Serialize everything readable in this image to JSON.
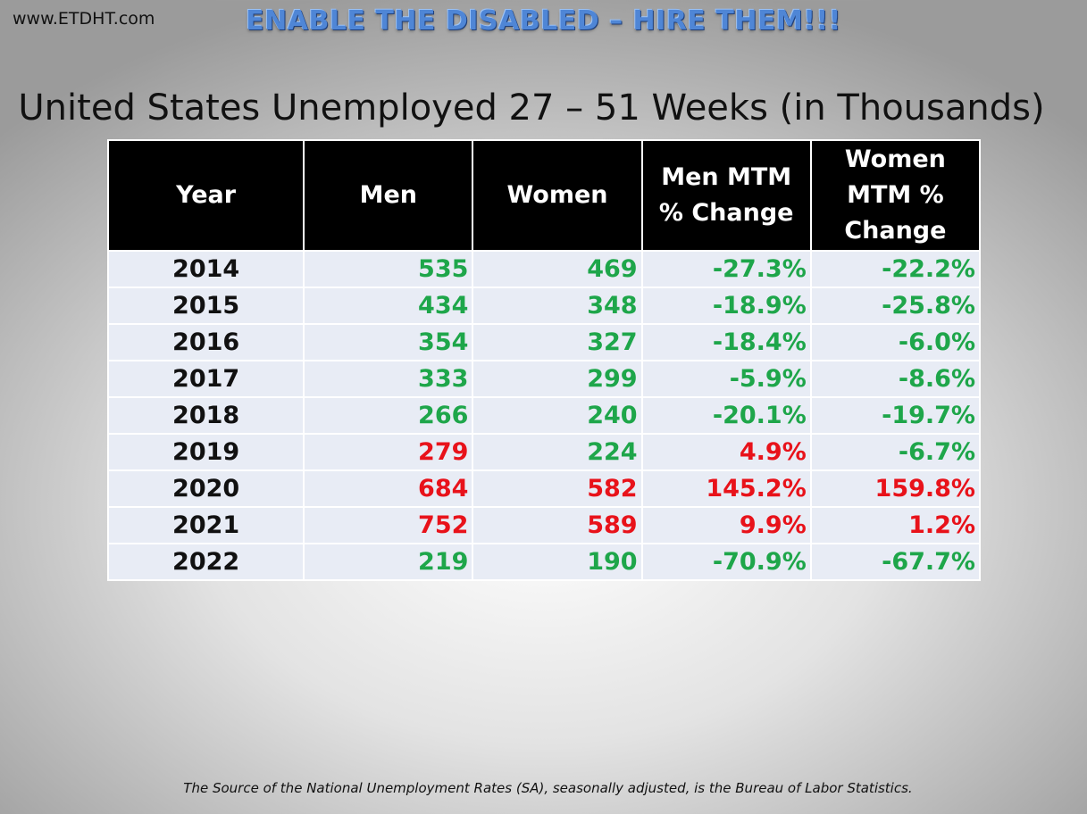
{
  "site_url": "www.ETDHT.com",
  "banner": "ENABLE THE DISABLED – HIRE THEM!!!",
  "title": "United States Unemployed 27 – 51 Weeks (in Thousands)",
  "source": "The Source of the National Unemployment Rates (SA), seasonally adjusted, is the Bureau of Labor Statistics.",
  "colors": {
    "increase": "#e8121a",
    "decrease": "#1ea64a",
    "header_bg": "#000000",
    "row_bg": "#e8ecf5",
    "banner": "#4f86d6"
  },
  "chart_data": {
    "type": "table",
    "title": "United States Unemployed 27 – 51 Weeks (in Thousands)",
    "columns": [
      "Year",
      "Men",
      "Women",
      "Men MTM % Change",
      "Women MTM % Change"
    ],
    "rows": [
      [
        "2014",
        "535",
        "469",
        "-27.3%",
        "-22.2%"
      ],
      [
        "2015",
        "434",
        "348",
        "-18.9%",
        "-25.8%"
      ],
      [
        "2016",
        "354",
        "327",
        "-18.4%",
        "-6.0%"
      ],
      [
        "2017",
        "333",
        "299",
        "-5.9%",
        "-8.6%"
      ],
      [
        "2018",
        "266",
        "240",
        "-20.1%",
        "-19.7%"
      ],
      [
        "2019",
        "279",
        "224",
        "4.9%",
        "-6.7%"
      ],
      [
        "2020",
        "684",
        "582",
        "145.2%",
        "159.8%"
      ],
      [
        "2021",
        "752",
        "589",
        "9.9%",
        "1.2%"
      ],
      [
        "2022",
        "219",
        "190",
        "-70.9%",
        "-67.7%"
      ]
    ],
    "cell_status": [
      [
        "year",
        "decrease",
        "decrease",
        "decrease",
        "decrease"
      ],
      [
        "year",
        "decrease",
        "decrease",
        "decrease",
        "decrease"
      ],
      [
        "year",
        "decrease",
        "decrease",
        "decrease",
        "decrease"
      ],
      [
        "year",
        "decrease",
        "decrease",
        "decrease",
        "decrease"
      ],
      [
        "year",
        "decrease",
        "decrease",
        "decrease",
        "decrease"
      ],
      [
        "year",
        "increase",
        "decrease",
        "increase",
        "decrease"
      ],
      [
        "year",
        "increase",
        "increase",
        "increase",
        "increase"
      ],
      [
        "year",
        "increase",
        "increase",
        "increase",
        "increase"
      ],
      [
        "year",
        "decrease",
        "decrease",
        "decrease",
        "decrease"
      ]
    ]
  }
}
